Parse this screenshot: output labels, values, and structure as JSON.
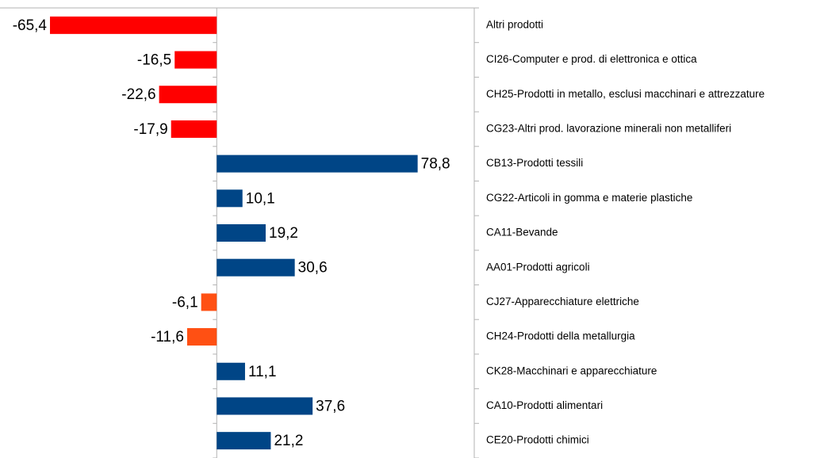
{
  "chart_data": {
    "type": "hbar",
    "categories": [
      "Altri prodotti",
      "CI26-Computer e prod. di elettronica e ottica",
      "CH25-Prodotti in metallo, esclusi macchinari e attrezzature",
      "CG23-Altri prod. lavorazione minerali non metalliferi",
      "CB13-Prodotti tessili",
      "CG22-Articoli in gomma e materie plastiche",
      "CA11-Bevande",
      "AA01-Prodotti agricoli",
      "CJ27-Apparecchiature elettriche",
      "CH24-Prodotti della metallurgia",
      "CK28-Macchinari e apparecchiature",
      "CA10-Prodotti alimentari",
      "CE20-Prodotti chimici"
    ],
    "values": [
      -65.4,
      -16.5,
      -22.6,
      -17.9,
      78.8,
      10.1,
      19.2,
      30.6,
      -6.1,
      -11.6,
      11.1,
      37.6,
      21.2
    ],
    "value_labels": [
      "-65,4",
      "-16,5",
      "-22,6",
      "-17,9",
      "78,8",
      "10,1",
      "19,2",
      "30,6",
      "-6,1",
      "-11,6",
      "11,1",
      "37,6",
      "21,2"
    ],
    "colors": [
      "#ff0000",
      "#ff0000",
      "#ff0000",
      "#ff0000",
      "#004586",
      "#004586",
      "#004586",
      "#004586",
      "#ff5013",
      "#ff5013",
      "#004586",
      "#004586",
      "#004586"
    ],
    "xlim": [
      -85,
      101
    ]
  }
}
